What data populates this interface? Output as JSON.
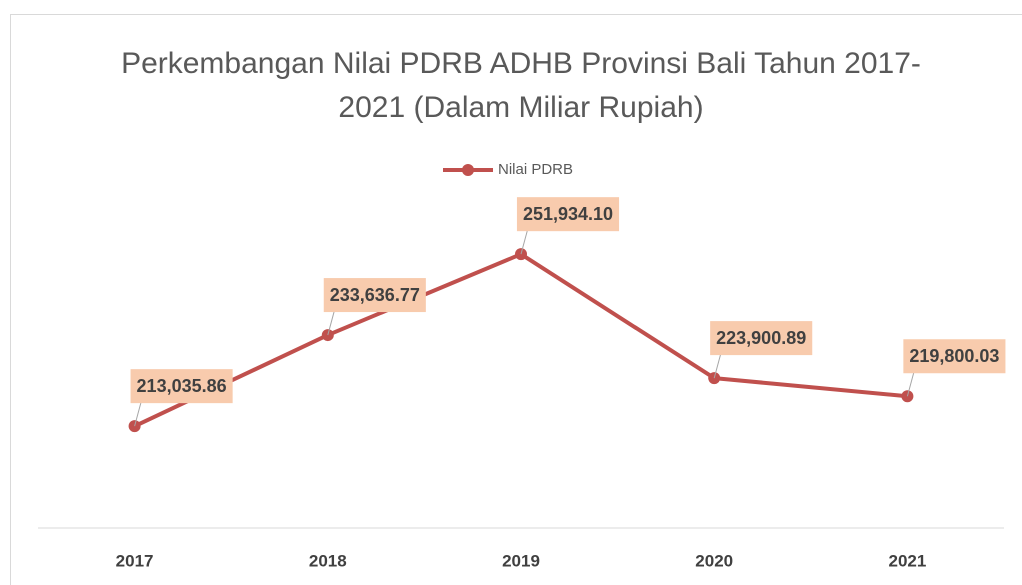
{
  "chart_data": {
    "type": "line",
    "title": "Perkembangan  Nilai PDRB ADHB Provinsi Bali Tahun 2017-2021 (Dalam Miliar Rupiah)",
    "categories": [
      "2017",
      "2018",
      "2019",
      "2020",
      "2021"
    ],
    "series": [
      {
        "name": "Nilai PDRB",
        "color": "#c0504d",
        "values": [
          213035.86,
          233636.77,
          251934.1,
          223900.89,
          219800.03
        ],
        "value_labels": [
          "213,035.86",
          "233,636.77",
          "251,934.10",
          "223,900.89",
          "219,800.03"
        ]
      }
    ],
    "ylim": [
      190000,
      260000
    ],
    "legend": "top",
    "label_color": "#f8cbad"
  }
}
